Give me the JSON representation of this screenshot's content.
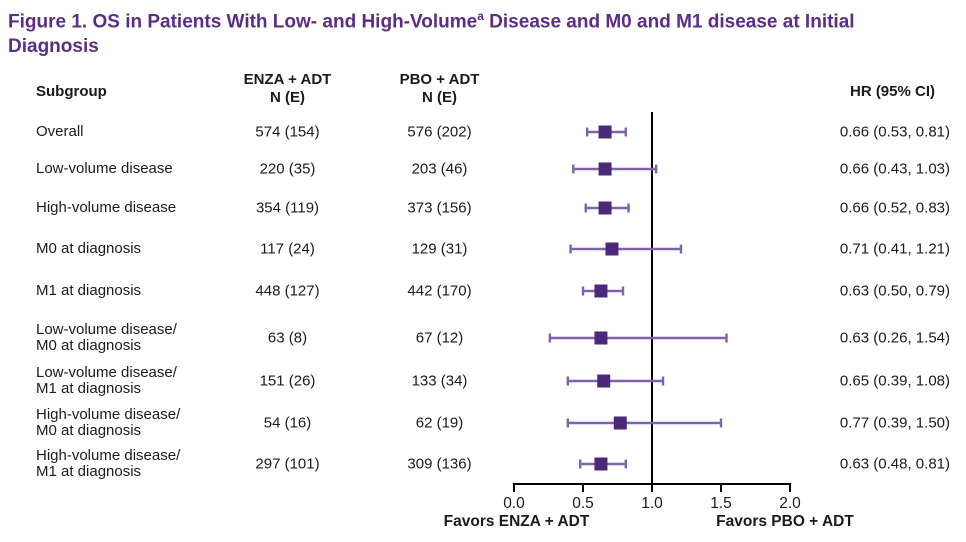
{
  "figure": {
    "title_part1": "Figure 1. OS in Patients With Low- and High-Volume",
    "title_sup": "a",
    "title_part2": " Disease and M0 and M1 disease at Initial Diagnosis"
  },
  "header": {
    "subgroup": "Subgroup",
    "enza_line1": "ENZA + ADT",
    "enza_line2": "N (E)",
    "pbo_line1": "PBO + ADT",
    "pbo_line2": "N (E)",
    "hr": "HR (95% CI)"
  },
  "chart_data": {
    "type": "forest",
    "title": "OS in Patients With Low- and High-Volume Disease and M0 and M1 disease at Initial Diagnosis",
    "x_ticks": [
      0.0,
      0.5,
      1.0,
      1.5,
      2.0
    ],
    "x_tick_labels": [
      "0.0",
      "0.5",
      "1.0",
      "1.5",
      "2.0"
    ],
    "x_range": [
      0.0,
      2.0
    ],
    "ref_line": 1.0,
    "favors_left": "Favors ENZA + ADT",
    "favors_right": "Favors PBO + ADT",
    "rows": [
      {
        "subgroup": [
          "Overall"
        ],
        "enza_ne": "574 (154)",
        "pbo_ne": "576 (202)",
        "hr": 0.66,
        "ci": [
          0.53,
          0.81
        ],
        "hr_text": "0.66 (0.53, 0.81)"
      },
      {
        "subgroup": [
          "Low-volume disease"
        ],
        "enza_ne": "220 (35)",
        "pbo_ne": "203 (46)",
        "hr": 0.66,
        "ci": [
          0.43,
          1.03
        ],
        "hr_text": "0.66 (0.43, 1.03)"
      },
      {
        "subgroup": [
          "High-volume disease"
        ],
        "enza_ne": "354 (119)",
        "pbo_ne": "373 (156)",
        "hr": 0.66,
        "ci": [
          0.52,
          0.83
        ],
        "hr_text": "0.66 (0.52, 0.83)"
      },
      {
        "subgroup": [
          "M0 at diagnosis"
        ],
        "enza_ne": "117 (24)",
        "pbo_ne": "129 (31)",
        "hr": 0.71,
        "ci": [
          0.41,
          1.21
        ],
        "hr_text": "0.71 (0.41, 1.21)"
      },
      {
        "subgroup": [
          "M1 at diagnosis"
        ],
        "enza_ne": "448 (127)",
        "pbo_ne": "442 (170)",
        "hr": 0.63,
        "ci": [
          0.5,
          0.79
        ],
        "hr_text": "0.63 (0.50, 0.79)"
      },
      {
        "subgroup": [
          "Low-volume disease/",
          "M0 at diagnosis"
        ],
        "enza_ne": "63 (8)",
        "pbo_ne": "67 (12)",
        "hr": 0.63,
        "ci": [
          0.26,
          1.54
        ],
        "hr_text": "0.63 (0.26, 1.54)"
      },
      {
        "subgroup": [
          "Low-volume disease/",
          "M1 at diagnosis"
        ],
        "enza_ne": "151 (26)",
        "pbo_ne": "133 (34)",
        "hr": 0.65,
        "ci": [
          0.39,
          1.08
        ],
        "hr_text": "0.65 (0.39, 1.08)"
      },
      {
        "subgroup": [
          "High-volume disease/",
          "M0 at diagnosis"
        ],
        "enza_ne": "54 (16)",
        "pbo_ne": "62 (19)",
        "hr": 0.77,
        "ci": [
          0.39,
          1.5
        ],
        "hr_text": "0.77 (0.39, 1.50)"
      },
      {
        "subgroup": [
          "High-volume disease/",
          "M1 at diagnosis"
        ],
        "enza_ne": "297 (101)",
        "pbo_ne": "309 (136)",
        "hr": 0.63,
        "ci": [
          0.48,
          0.81
        ],
        "hr_text": "0.63 (0.48, 0.81)"
      }
    ]
  },
  "colors": {
    "title": "#5b2d87",
    "marker": "#4a2a78",
    "whisker": "#7f62aa",
    "axis": "#000000",
    "text": "#1b1b1b"
  }
}
